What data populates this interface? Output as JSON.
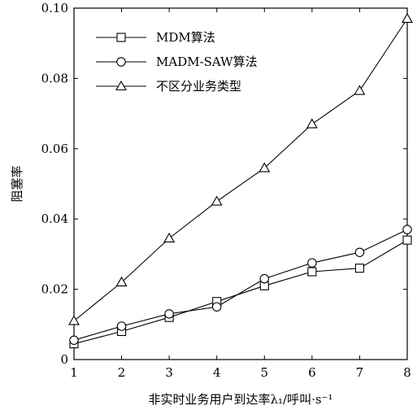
{
  "chart_data": {
    "type": "line",
    "x": [
      1,
      2,
      3,
      4,
      5,
      6,
      7,
      8
    ],
    "xlim": [
      1,
      8
    ],
    "ylim": [
      0,
      0.1
    ],
    "xticks": [
      "1",
      "2",
      "3",
      "4",
      "5",
      "6",
      "7",
      "8"
    ],
    "yticks": [
      "0",
      "0.02",
      "0.04",
      "0.06",
      "0.08",
      "0.10"
    ],
    "xlabel": "非实时业务用户到达率λ₁/呼叫·s⁻¹",
    "ylabel": "阻塞率",
    "legend_position": "top-left",
    "grid": false,
    "series": [
      {
        "name": "MDM算法",
        "marker": "square",
        "color": "#000000",
        "values": [
          0.0045,
          0.008,
          0.012,
          0.0165,
          0.021,
          0.025,
          0.026,
          0.034
        ]
      },
      {
        "name": "MADM-SAW算法",
        "marker": "circle",
        "color": "#000000",
        "values": [
          0.0055,
          0.0095,
          0.013,
          0.015,
          0.023,
          0.0275,
          0.0305,
          0.037
        ]
      },
      {
        "name": "不区分业务类型",
        "marker": "triangle",
        "color": "#000000",
        "values": [
          0.011,
          0.022,
          0.0345,
          0.045,
          0.0545,
          0.067,
          0.0765,
          0.097
        ]
      }
    ]
  }
}
